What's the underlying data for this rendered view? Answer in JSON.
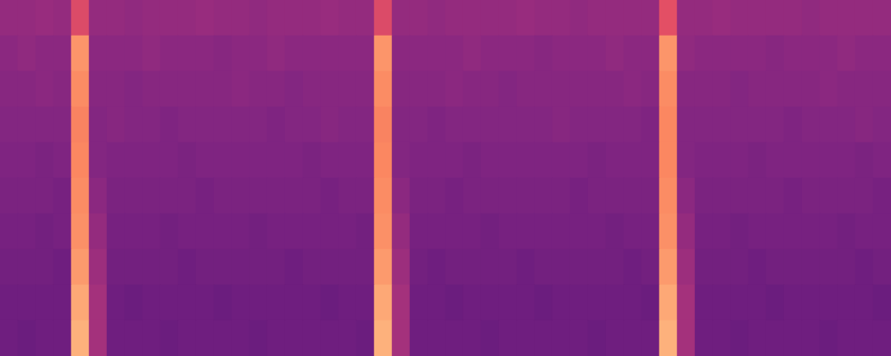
{
  "chart_data": {
    "type": "heatmap",
    "tick_labels": false,
    "grid": false,
    "zlim": [
      0,
      1
    ],
    "cells": [
      [
        0.42,
        0.42,
        0.43,
        0.42,
        0.6,
        0.42,
        0.42,
        0.41,
        0.42,
        0.42,
        0.42,
        0.43,
        0.42,
        0.42,
        0.41,
        0.42,
        0.42,
        0.42,
        0.43,
        0.42,
        0.42,
        0.6,
        0.42,
        0.42,
        0.41,
        0.42,
        0.42,
        0.42,
        0.42,
        0.43,
        0.42,
        0.42,
        0.41,
        0.42,
        0.42,
        0.42,
        0.42,
        0.62,
        0.42,
        0.42,
        0.43,
        0.42,
        0.42,
        0.42,
        0.42,
        0.41,
        0.42,
        0.42,
        0.42,
        0.42
      ],
      [
        0.4,
        0.41,
        0.4,
        0.4,
        0.78,
        0.4,
        0.4,
        0.4,
        0.41,
        0.4,
        0.4,
        0.4,
        0.39,
        0.4,
        0.4,
        0.41,
        0.4,
        0.4,
        0.4,
        0.4,
        0.4,
        0.78,
        0.4,
        0.4,
        0.4,
        0.4,
        0.41,
        0.4,
        0.4,
        0.4,
        0.39,
        0.4,
        0.4,
        0.4,
        0.41,
        0.4,
        0.4,
        0.78,
        0.41,
        0.4,
        0.4,
        0.4,
        0.4,
        0.39,
        0.4,
        0.4,
        0.4,
        0.41,
        0.4,
        0.4
      ],
      [
        0.39,
        0.39,
        0.4,
        0.39,
        0.76,
        0.39,
        0.39,
        0.38,
        0.39,
        0.39,
        0.39,
        0.39,
        0.39,
        0.4,
        0.39,
        0.39,
        0.38,
        0.39,
        0.39,
        0.39,
        0.39,
        0.76,
        0.39,
        0.39,
        0.39,
        0.4,
        0.39,
        0.39,
        0.38,
        0.39,
        0.39,
        0.39,
        0.39,
        0.39,
        0.39,
        0.4,
        0.39,
        0.76,
        0.39,
        0.39,
        0.39,
        0.38,
        0.39,
        0.39,
        0.39,
        0.39,
        0.4,
        0.39,
        0.39,
        0.39
      ],
      [
        0.38,
        0.38,
        0.38,
        0.38,
        0.74,
        0.38,
        0.39,
        0.38,
        0.38,
        0.37,
        0.38,
        0.38,
        0.38,
        0.38,
        0.38,
        0.37,
        0.38,
        0.38,
        0.39,
        0.38,
        0.38,
        0.74,
        0.38,
        0.38,
        0.37,
        0.38,
        0.38,
        0.38,
        0.38,
        0.38,
        0.38,
        0.39,
        0.38,
        0.38,
        0.38,
        0.38,
        0.37,
        0.75,
        0.38,
        0.38,
        0.38,
        0.38,
        0.38,
        0.38,
        0.37,
        0.38,
        0.38,
        0.38,
        0.39,
        0.38
      ],
      [
        0.37,
        0.37,
        0.36,
        0.37,
        0.75,
        0.38,
        0.37,
        0.37,
        0.37,
        0.37,
        0.36,
        0.37,
        0.37,
        0.37,
        0.37,
        0.37,
        0.37,
        0.36,
        0.37,
        0.37,
        0.37,
        0.75,
        0.38,
        0.37,
        0.37,
        0.37,
        0.36,
        0.37,
        0.37,
        0.37,
        0.37,
        0.37,
        0.37,
        0.36,
        0.37,
        0.37,
        0.37,
        0.75,
        0.38,
        0.37,
        0.37,
        0.37,
        0.36,
        0.37,
        0.37,
        0.37,
        0.37,
        0.37,
        0.36,
        0.37
      ],
      [
        0.36,
        0.36,
        0.36,
        0.35,
        0.76,
        0.4,
        0.36,
        0.36,
        0.36,
        0.36,
        0.36,
        0.35,
        0.36,
        0.36,
        0.36,
        0.36,
        0.36,
        0.36,
        0.35,
        0.36,
        0.36,
        0.76,
        0.4,
        0.36,
        0.36,
        0.35,
        0.36,
        0.36,
        0.36,
        0.36,
        0.36,
        0.36,
        0.35,
        0.36,
        0.36,
        0.36,
        0.36,
        0.76,
        0.4,
        0.36,
        0.36,
        0.36,
        0.36,
        0.36,
        0.35,
        0.36,
        0.36,
        0.36,
        0.36,
        0.35
      ],
      [
        0.35,
        0.35,
        0.34,
        0.35,
        0.77,
        0.42,
        0.35,
        0.35,
        0.35,
        0.34,
        0.35,
        0.35,
        0.35,
        0.35,
        0.34,
        0.35,
        0.35,
        0.35,
        0.35,
        0.35,
        0.34,
        0.77,
        0.42,
        0.35,
        0.35,
        0.35,
        0.35,
        0.34,
        0.35,
        0.35,
        0.35,
        0.35,
        0.35,
        0.35,
        0.34,
        0.35,
        0.35,
        0.77,
        0.42,
        0.35,
        0.35,
        0.34,
        0.35,
        0.35,
        0.35,
        0.35,
        0.35,
        0.34,
        0.35,
        0.35
      ],
      [
        0.34,
        0.34,
        0.34,
        0.33,
        0.79,
        0.44,
        0.34,
        0.34,
        0.34,
        0.34,
        0.33,
        0.34,
        0.34,
        0.34,
        0.34,
        0.34,
        0.33,
        0.34,
        0.34,
        0.34,
        0.34,
        0.79,
        0.44,
        0.34,
        0.33,
        0.34,
        0.34,
        0.34,
        0.34,
        0.33,
        0.34,
        0.34,
        0.34,
        0.34,
        0.34,
        0.33,
        0.34,
        0.79,
        0.44,
        0.34,
        0.34,
        0.34,
        0.33,
        0.34,
        0.34,
        0.34,
        0.34,
        0.34,
        0.33,
        0.34
      ],
      [
        0.33,
        0.33,
        0.33,
        0.33,
        0.82,
        0.46,
        0.33,
        0.32,
        0.33,
        0.33,
        0.33,
        0.33,
        0.32,
        0.33,
        0.33,
        0.33,
        0.33,
        0.33,
        0.32,
        0.33,
        0.33,
        0.82,
        0.46,
        0.33,
        0.33,
        0.32,
        0.33,
        0.33,
        0.33,
        0.33,
        0.32,
        0.33,
        0.33,
        0.33,
        0.33,
        0.33,
        0.32,
        0.82,
        0.46,
        0.33,
        0.33,
        0.33,
        0.33,
        0.32,
        0.33,
        0.33,
        0.33,
        0.33,
        0.33,
        0.32
      ],
      [
        0.33,
        0.32,
        0.33,
        0.33,
        0.84,
        0.46,
        0.33,
        0.33,
        0.33,
        0.32,
        0.33,
        0.33,
        0.33,
        0.33,
        0.32,
        0.33,
        0.33,
        0.33,
        0.33,
        0.33,
        0.32,
        0.84,
        0.46,
        0.33,
        0.33,
        0.33,
        0.33,
        0.32,
        0.33,
        0.33,
        0.33,
        0.33,
        0.33,
        0.32,
        0.33,
        0.33,
        0.33,
        0.84,
        0.46,
        0.33,
        0.33,
        0.32,
        0.33,
        0.33,
        0.33,
        0.33,
        0.32,
        0.33,
        0.33,
        0.33
      ]
    ]
  }
}
